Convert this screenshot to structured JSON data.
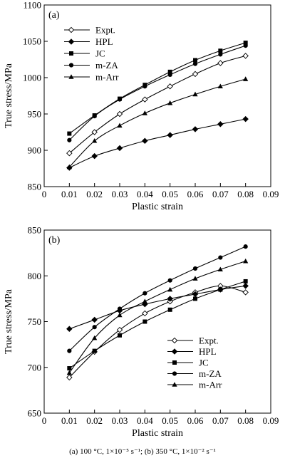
{
  "chart_data": [
    {
      "type": "line",
      "panel_label": "(a)",
      "xlabel": "Plastic strain",
      "ylabel": "True stress/MPa",
      "xlim": [
        0,
        0.09
      ],
      "ylim": [
        850,
        1100
      ],
      "x_ticks": [
        0,
        0.01,
        0.02,
        0.03,
        0.04,
        0.05,
        0.06,
        0.07,
        0.08,
        0.09
      ],
      "x_tick_labels": [
        "0",
        "0.01",
        "0.02",
        "0.03",
        "0.04",
        "0.05",
        "0.06",
        "0.07",
        "0.08",
        "0.09"
      ],
      "y_ticks": [
        850,
        900,
        950,
        1000,
        1050,
        1100
      ],
      "y_tick_labels": [
        "850",
        "900",
        "950",
        "1000",
        "1050",
        "1100"
      ],
      "legend_position": "top-left",
      "x": [
        0.01,
        0.02,
        0.03,
        0.04,
        0.05,
        0.06,
        0.07,
        0.08
      ],
      "series": [
        {
          "name": "Expt.",
          "marker": "diamond-open",
          "values": [
            896,
            925,
            950,
            970,
            988,
            1005,
            1020,
            1030
          ]
        },
        {
          "name": "HPL",
          "marker": "diamond-filled",
          "values": [
            876,
            892,
            903,
            913,
            921,
            929,
            936,
            943
          ]
        },
        {
          "name": "JC",
          "marker": "square",
          "values": [
            923,
            948,
            971,
            990,
            1008,
            1024,
            1037,
            1048
          ]
        },
        {
          "name": "m-ZA",
          "marker": "circle",
          "values": [
            914,
            947,
            970,
            988,
            1004,
            1019,
            1032,
            1044
          ]
        },
        {
          "name": "m-Arr",
          "marker": "triangle",
          "values": [
            877,
            913,
            934,
            951,
            965,
            977,
            988,
            998
          ]
        }
      ]
    },
    {
      "type": "line",
      "panel_label": "(b)",
      "xlabel": "Plastic strain",
      "ylabel": "True stress/MPa",
      "xlim": [
        0,
        0.09
      ],
      "ylim": [
        650,
        850
      ],
      "x_ticks": [
        0,
        0.01,
        0.02,
        0.03,
        0.04,
        0.05,
        0.06,
        0.07,
        0.08,
        0.09
      ],
      "x_tick_labels": [
        "0",
        "0.01",
        "0.02",
        "0.03",
        "0.04",
        "0.05",
        "0.06",
        "0.07",
        "0.08",
        "0.09"
      ],
      "y_ticks": [
        650,
        700,
        750,
        800,
        850
      ],
      "y_tick_labels": [
        "650",
        "700",
        "750",
        "800",
        "850"
      ],
      "legend_position": "bottom-right",
      "x": [
        0.01,
        0.02,
        0.03,
        0.04,
        0.05,
        0.06,
        0.07,
        0.08
      ],
      "series": [
        {
          "name": "Expt.",
          "marker": "diamond-open",
          "values": [
            689,
            717,
            741,
            759,
            772,
            782,
            789,
            782
          ]
        },
        {
          "name": "HPL",
          "marker": "diamond-filled",
          "values": [
            742,
            752,
            762,
            769,
            775,
            780,
            785,
            789
          ]
        },
        {
          "name": "JC",
          "marker": "square",
          "values": [
            699,
            718,
            735,
            750,
            763,
            775,
            785,
            794
          ]
        },
        {
          "name": "m-ZA",
          "marker": "circle",
          "values": [
            718,
            744,
            764,
            781,
            795,
            808,
            820,
            832
          ]
        },
        {
          "name": "m-Arr",
          "marker": "triangle",
          "values": [
            694,
            732,
            757,
            772,
            785,
            797,
            807,
            816
          ]
        }
      ]
    }
  ],
  "caption": "(a)  100  °C, 1×10⁻⁵ s⁻¹; (b) 350 °C, 1×10⁻² s⁻¹"
}
